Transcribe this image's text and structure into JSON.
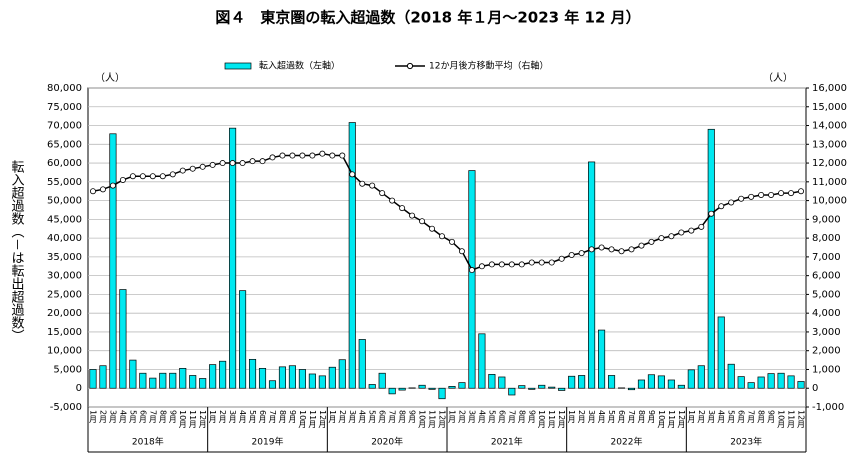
{
  "chart_data": {
    "type": "bar_line",
    "title": "図４　東京圏の転入超過数（2018 年１月～2023 年 12 月）",
    "y_label": "転入超過数（－は転出超過数）",
    "y_unit": "（人）",
    "y2_unit": "（人）",
    "legend": "top",
    "grid": true,
    "categories": [
      "1月",
      "2月",
      "3月",
      "4月",
      "5月",
      "6月",
      "7月",
      "8月",
      "9月",
      "10月",
      "11月",
      "12月",
      "1月",
      "2月",
      "3月",
      "4月",
      "5月",
      "6月",
      "7月",
      "8月",
      "9月",
      "10月",
      "11月",
      "12月",
      "1月",
      "2月",
      "3月",
      "4月",
      "5月",
      "6月",
      "7月",
      "8月",
      "9月",
      "10月",
      "11月",
      "12月",
      "1月",
      "2月",
      "3月",
      "4月",
      "5月",
      "6月",
      "7月",
      "8月",
      "9月",
      "10月",
      "11月",
      "12月",
      "1月",
      "2月",
      "3月",
      "4月",
      "5月",
      "6月",
      "7月",
      "8月",
      "9月",
      "10月",
      "11月",
      "12月",
      "1月",
      "2月",
      "3月",
      "4月",
      "5月",
      "6月",
      "7月",
      "8月",
      "9月",
      "10月",
      "11月",
      "12月"
    ],
    "groups": [
      "2018年",
      "2019年",
      "2020年",
      "2021年",
      "2022年",
      "2023年"
    ],
    "series": [
      {
        "name": "転入超過数（左軸）",
        "type": "bar",
        "color": "#00e8f0",
        "values": [
          5000,
          6000,
          67800,
          26300,
          7500,
          4000,
          2700,
          4000,
          4000,
          5300,
          3400,
          2600,
          6300,
          7200,
          69300,
          26000,
          7700,
          5300,
          2000,
          5700,
          6000,
          5000,
          3800,
          3300,
          5600,
          7600,
          70800,
          13000,
          1000,
          4000,
          -1500,
          -500,
          100,
          800,
          -300,
          -2800,
          500,
          1500,
          58000,
          14500,
          3700,
          3000,
          -1800,
          700,
          -300,
          800,
          300,
          -600,
          3200,
          3400,
          60300,
          15500,
          3400,
          100,
          -400,
          2200,
          3600,
          3300,
          2200,
          800,
          4900,
          6000,
          69000,
          19000,
          6400,
          3100,
          1500,
          3000,
          3900,
          4000,
          3300,
          1800
        ]
      },
      {
        "name": "12か月後方移動平均（右軸）",
        "type": "line",
        "axis": "y2",
        "color": "#000000",
        "values": [
          10500,
          10600,
          10800,
          11100,
          11300,
          11300,
          11300,
          11300,
          11400,
          11600,
          11700,
          11800,
          11900,
          12000,
          12000,
          12000,
          12100,
          12100,
          12300,
          12400,
          12400,
          12400,
          12400,
          12500,
          12400,
          12400,
          11400,
          10900,
          10800,
          10400,
          10000,
          9600,
          9200,
          8900,
          8500,
          8100,
          7800,
          7300,
          6300,
          6500,
          6600,
          6600,
          6600,
          6600,
          6700,
          6700,
          6700,
          6900,
          7100,
          7200,
          7400,
          7500,
          7400,
          7300,
          7400,
          7600,
          7800,
          8000,
          8100,
          8300,
          8400,
          8600,
          9300,
          9700,
          9900,
          10100,
          10200,
          10300,
          10300,
          10400,
          10400,
          10500
        ]
      }
    ],
    "ylim": [
      -5000,
      80000
    ],
    "yticks": [
      {
        "value": -5000,
        "label": "-5,000"
      },
      0,
      {
        "value": 5000,
        "label": "5,000"
      },
      {
        "value": 10000,
        "label": "10,000"
      },
      {
        "value": 15000,
        "label": "15,000"
      },
      {
        "value": 20000,
        "label": "20,000"
      },
      {
        "value": 25000,
        "label": "25,000"
      },
      {
        "value": 30000,
        "label": "30,000"
      },
      {
        "value": 35000,
        "label": "35,000"
      },
      {
        "value": 40000,
        "label": "40,000"
      },
      {
        "value": 45000,
        "label": "45,000"
      },
      {
        "value": 50000,
        "label": "50,000"
      },
      {
        "value": 55000,
        "label": "55,000"
      },
      {
        "value": 60000,
        "label": "60,000"
      },
      {
        "value": 65000,
        "label": "65,000"
      },
      {
        "value": 70000,
        "label": "70,000"
      },
      {
        "value": 75000,
        "label": "75,000"
      },
      {
        "value": 80000,
        "label": "80,000"
      }
    ],
    "y2lim": [
      -1000,
      16000
    ],
    "y2ticks": [
      {
        "value": -1000,
        "label": "-1,000"
      },
      0,
      {
        "value": 1000,
        "label": "1,000"
      },
      {
        "value": 2000,
        "label": "2,000"
      },
      {
        "value": 3000,
        "label": "3,000"
      },
      {
        "value": 4000,
        "label": "4,000"
      },
      {
        "value": 5000,
        "label": "5,000"
      },
      {
        "value": 6000,
        "label": "6,000"
      },
      {
        "value": 7000,
        "label": "7,000"
      },
      {
        "value": 8000,
        "label": "8,000"
      },
      {
        "value": 9000,
        "label": "9,000"
      },
      {
        "value": 10000,
        "label": "10,000"
      },
      {
        "value": 11000,
        "label": "11,000"
      },
      {
        "value": 12000,
        "label": "12,000"
      },
      {
        "value": 13000,
        "label": "13,000"
      },
      {
        "value": 14000,
        "label": "14,000"
      },
      {
        "value": 15000,
        "label": "15,000"
      },
      {
        "value": 16000,
        "label": "16,000"
      }
    ]
  }
}
